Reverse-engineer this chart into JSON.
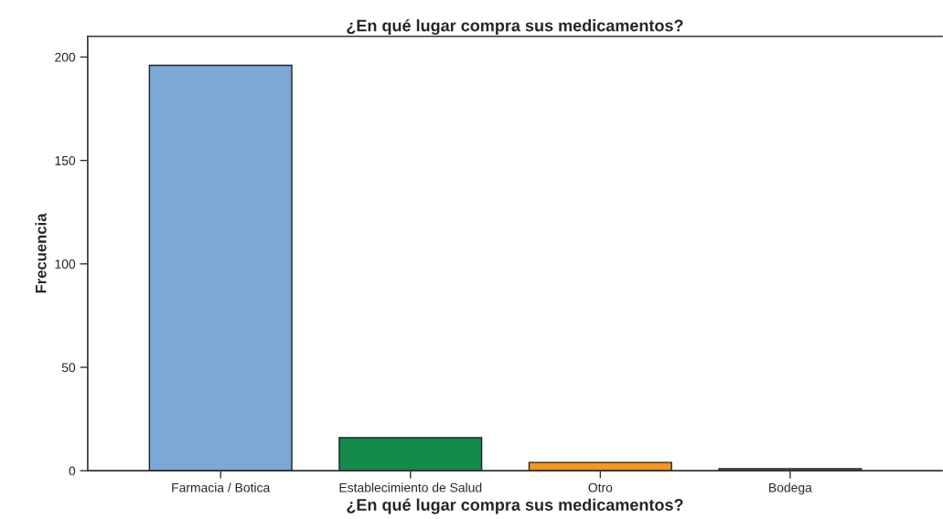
{
  "chart_data": {
    "type": "bar",
    "title": "¿En qué lugar compra sus medicamentos?",
    "xlabel": "¿En qué lugar compra sus medicamentos?",
    "ylabel": "Frecuencia",
    "categories": [
      "Farmacia / Botica",
      "Establecimiento de Salud",
      "Otro",
      "Bodega"
    ],
    "values": [
      196,
      16,
      4,
      1
    ],
    "colors": [
      "#7ba8d6",
      "#138a4a",
      "#f7971f",
      "#6b6b4f"
    ],
    "ylim": [
      0,
      210
    ],
    "yticks": [
      0,
      50,
      100,
      150,
      200
    ],
    "grid": false
  }
}
